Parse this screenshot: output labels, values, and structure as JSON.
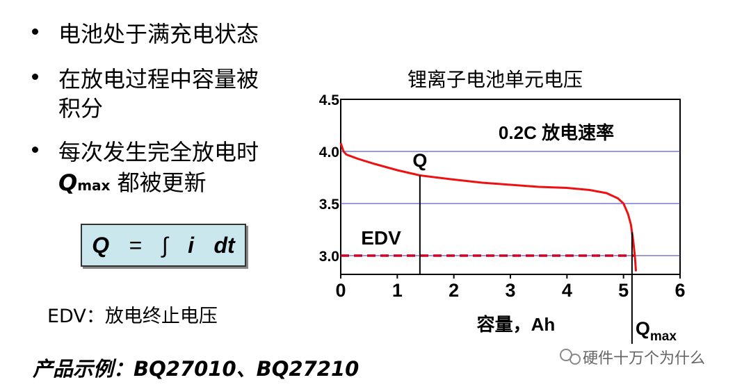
{
  "slide": {
    "bullets": [
      {
        "lines": [
          "电池处于满充电状态"
        ]
      },
      {
        "lines": [
          "在放电过程中容量被",
          "积分"
        ]
      },
      {
        "lines": [
          "每次发生完全放电时"
        ],
        "q": "Q",
        "q_sub": "max",
        "q_rest": "都被更新"
      }
    ],
    "formula": [
      "Q",
      "=",
      "∫",
      "i",
      "dt"
    ],
    "edv_note": "EDV：放电终止电压",
    "example": "产品示例：BQ27010、BQ27210",
    "watermark": "硬件十万个为什么"
  },
  "chart_data": {
    "type": "line",
    "title": "锂离子电池单元电压",
    "x_label": "容量，Ah",
    "annotation": "0.2C 放电速率",
    "xlim": [
      0,
      6
    ],
    "xticks": [
      0,
      1,
      2,
      3,
      4,
      5,
      6
    ],
    "ylim": [
      2.82,
      4.5
    ],
    "yticks": [
      {
        "value": 3,
        "label": "3.0"
      },
      3.5,
      {
        "value": 4,
        "label": "4.0"
      },
      4.5
    ],
    "grid": true,
    "grid_color": "#3333cc",
    "x": [
      0,
      0.05,
      0.1,
      0.3,
      0.6,
      1.0,
      1.4,
      2.0,
      2.5,
      3.0,
      3.5,
      4.0,
      4.4,
      4.7,
      4.9,
      5.0,
      5.08,
      5.13,
      5.17,
      5.2,
      5.22
    ],
    "series": [
      {
        "color": "#ee1111",
        "values": [
          4.08,
          4.0,
          3.97,
          3.93,
          3.88,
          3.82,
          3.77,
          3.73,
          3.7,
          3.68,
          3.66,
          3.65,
          3.63,
          3.6,
          3.55,
          3.5,
          3.4,
          3.3,
          3.15,
          3.0,
          2.85
        ]
      }
    ],
    "edv": {
      "label": "EDV",
      "y": 3.0,
      "x_end": 5.2,
      "color": "#cc0022"
    },
    "markers": [
      {
        "label": "Q",
        "x": 1.4
      },
      {
        "label": "Q",
        "sub": "max",
        "x": 5.15
      }
    ]
  }
}
